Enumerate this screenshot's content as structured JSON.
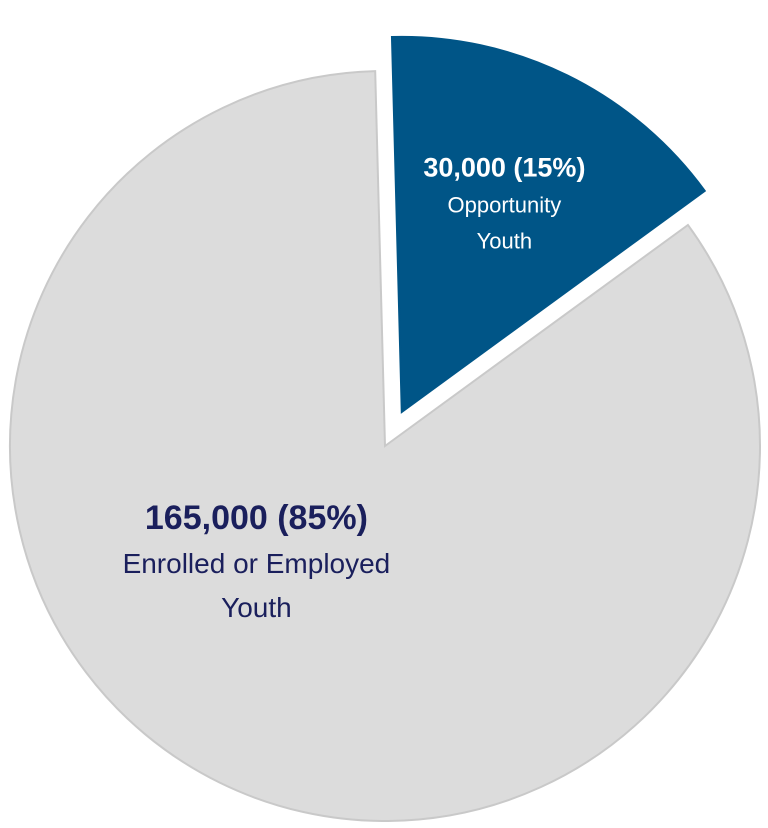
{
  "chart_data": {
    "type": "pie",
    "slices": [
      {
        "value": 30000,
        "value_text": "30,000 (15%)",
        "label_lines": [
          "Opportunity",
          "Youth"
        ],
        "color": "#005587",
        "text_color": "#ffffff",
        "value_color": "#ffffff",
        "exploded": true
      },
      {
        "value": 165000,
        "value_text": "165,000 (85%)",
        "label_lines": [
          "Enrolled or Employed",
          "Youth"
        ],
        "color": "#dcdcdc",
        "text_color": "#1a1f5c",
        "value_color": "#1a1f5c",
        "exploded": false
      }
    ]
  }
}
